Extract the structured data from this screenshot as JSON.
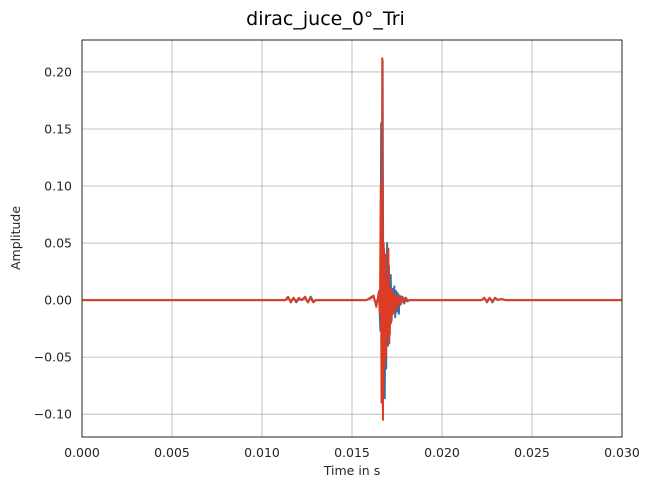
{
  "chart_data": {
    "type": "line",
    "title": "dirac_juce_0°_Tri",
    "xlabel": "Time in s",
    "ylabel": "Amplitude",
    "xlim": [
      0.0,
      0.03
    ],
    "ylim": [
      -0.12,
      0.228
    ],
    "xticks": [
      0.0,
      0.005,
      0.01,
      0.015,
      0.02,
      0.025,
      0.03
    ],
    "xtick_labels": [
      "0.000",
      "0.005",
      "0.010",
      "0.015",
      "0.020",
      "0.025",
      "0.030"
    ],
    "yticks": [
      -0.1,
      -0.05,
      0.0,
      0.05,
      0.1,
      0.15,
      0.2
    ],
    "ytick_labels": [
      "−0.10",
      "−0.05",
      "0.00",
      "0.05",
      "0.10",
      "0.15",
      "0.20"
    ],
    "grid": true,
    "legend": "none",
    "series": [
      {
        "color": "#3a6fa0",
        "x": [
          0.0,
          0.0113,
          0.01145,
          0.0116,
          0.01175,
          0.0119,
          0.01205,
          0.0122,
          0.0124,
          0.01255,
          0.0127,
          0.01285,
          0.013,
          0.0158,
          0.0162,
          0.01635,
          0.0165,
          0.01658,
          0.01662,
          0.01666,
          0.0167,
          0.01674,
          0.01678,
          0.01682,
          0.01686,
          0.0169,
          0.01695,
          0.017,
          0.01705,
          0.0171,
          0.01715,
          0.0172,
          0.01725,
          0.0173,
          0.01735,
          0.0174,
          0.01745,
          0.0175,
          0.01755,
          0.0176,
          0.01765,
          0.0177,
          0.0178,
          0.0179,
          0.018,
          0.0181,
          0.0182,
          0.0222,
          0.02235,
          0.0225,
          0.02265,
          0.0228,
          0.02295,
          0.0231,
          0.0233,
          0.0235,
          0.03
        ],
        "y": [
          0.0,
          0.0,
          0.002,
          -0.001,
          0.002,
          -0.002,
          0.001,
          0.0,
          0.002,
          -0.002,
          0.003,
          -0.001,
          0.0,
          0.0,
          0.003,
          -0.004,
          0.005,
          -0.027,
          0.155,
          -0.022,
          0.21,
          -0.03,
          0.045,
          -0.086,
          0.02,
          -0.06,
          0.05,
          -0.04,
          0.03,
          -0.03,
          0.022,
          -0.018,
          0.01,
          -0.008,
          0.012,
          -0.015,
          0.008,
          -0.01,
          0.006,
          -0.012,
          0.004,
          -0.004,
          0.003,
          -0.003,
          0.002,
          -0.001,
          0.0,
          0.0,
          0.002,
          -0.001,
          0.002,
          -0.002,
          0.002,
          0.0,
          0.001,
          0.0,
          0.0
        ]
      },
      {
        "color": "#dd3b24",
        "x": [
          0.0,
          0.0113,
          0.01145,
          0.0116,
          0.01175,
          0.0119,
          0.01205,
          0.0122,
          0.0124,
          0.01255,
          0.0127,
          0.01285,
          0.013,
          0.0158,
          0.0162,
          0.01635,
          0.0165,
          0.01655,
          0.0166,
          0.01664,
          0.01668,
          0.01672,
          0.01676,
          0.0168,
          0.01684,
          0.01688,
          0.01692,
          0.01697,
          0.01702,
          0.01707,
          0.01712,
          0.01717,
          0.01722,
          0.01727,
          0.01732,
          0.01737,
          0.01742,
          0.01747,
          0.01752,
          0.01757,
          0.01762,
          0.01767,
          0.01775,
          0.01785,
          0.01795,
          0.01805,
          0.0182,
          0.0222,
          0.02235,
          0.0225,
          0.02265,
          0.0228,
          0.02295,
          0.0231,
          0.0233,
          0.0235,
          0.03
        ],
        "y": [
          0.0,
          0.0,
          0.003,
          -0.002,
          0.002,
          -0.001,
          0.002,
          0.0,
          0.003,
          -0.002,
          0.002,
          -0.002,
          0.0,
          0.0,
          0.004,
          -0.006,
          0.008,
          -0.012,
          0.1,
          -0.09,
          0.212,
          -0.105,
          0.05,
          -0.06,
          0.04,
          -0.05,
          0.02,
          -0.03,
          0.045,
          -0.038,
          0.01,
          -0.02,
          0.008,
          -0.012,
          0.005,
          -0.01,
          0.003,
          -0.005,
          0.004,
          -0.006,
          0.002,
          -0.003,
          0.003,
          -0.002,
          0.002,
          -0.001,
          0.0,
          0.0,
          0.002,
          -0.002,
          0.002,
          -0.001,
          0.002,
          0.0,
          0.001,
          0.0,
          0.0
        ]
      }
    ]
  }
}
